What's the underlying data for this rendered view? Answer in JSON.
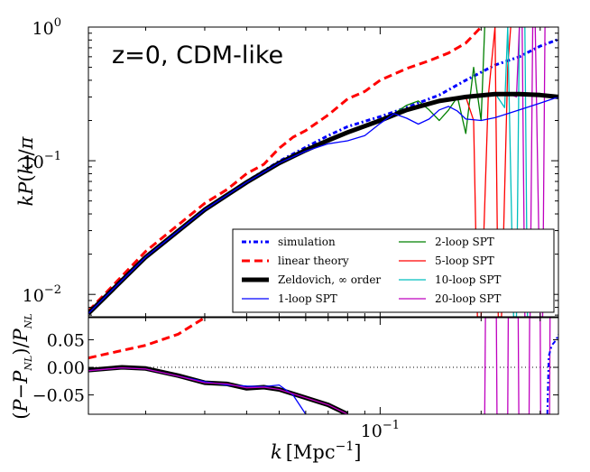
{
  "chart_data": [
    {
      "panel": "top",
      "type": "line",
      "annotation": "z=0, CDM-like",
      "ylabel": "kP(k)/π",
      "xscale": "log",
      "yscale": "log",
      "xlim": [
        0.0135,
        0.34
      ],
      "ylim": [
        0.0068,
        1.0
      ],
      "ytick_labels": [
        {
          "value": 0.01,
          "base": "10",
          "exp": "-2"
        },
        {
          "value": 0.1,
          "base": "10",
          "exp": "-1"
        },
        {
          "value": 1.0,
          "base": "10",
          "exp": "0"
        }
      ],
      "series": [
        {
          "name": "simulation",
          "color": "#0000ff",
          "style": "dashdot-dense",
          "width": 3,
          "x": [
            0.0135,
            0.02,
            0.03,
            0.04,
            0.05,
            0.06,
            0.07,
            0.08,
            0.1,
            0.12,
            0.15,
            0.18,
            0.22,
            0.26,
            0.3,
            0.34
          ],
          "y": [
            0.0073,
            0.019,
            0.043,
            0.07,
            0.099,
            0.126,
            0.154,
            0.18,
            0.214,
            0.25,
            0.31,
            0.4,
            0.52,
            0.6,
            0.72,
            0.81
          ]
        },
        {
          "name": "linear theory",
          "color": "#ff0000",
          "style": "dashed",
          "width": 3,
          "x": [
            0.0135,
            0.02,
            0.03,
            0.035,
            0.04,
            0.045,
            0.05,
            0.055,
            0.06,
            0.07,
            0.08,
            0.09,
            0.1,
            0.12,
            0.14,
            0.16,
            0.18,
            0.2
          ],
          "y": [
            0.0075,
            0.021,
            0.048,
            0.061,
            0.08,
            0.094,
            0.124,
            0.15,
            0.168,
            0.22,
            0.29,
            0.33,
            0.4,
            0.49,
            0.56,
            0.64,
            0.76,
            1.0
          ]
        },
        {
          "name": "Zeldovich, ∞ order",
          "color": "#000000",
          "style": "solid",
          "width": 5,
          "x": [
            0.0135,
            0.02,
            0.03,
            0.04,
            0.05,
            0.06,
            0.07,
            0.08,
            0.1,
            0.12,
            0.15,
            0.18,
            0.22,
            0.26,
            0.3,
            0.34
          ],
          "y": [
            0.0072,
            0.019,
            0.043,
            0.069,
            0.096,
            0.12,
            0.142,
            0.163,
            0.2,
            0.24,
            0.28,
            0.3,
            0.315,
            0.315,
            0.31,
            0.3
          ]
        },
        {
          "name": "1-loop SPT",
          "color": "#0000ff",
          "style": "solid",
          "width": 1.3,
          "x": [
            0.0135,
            0.02,
            0.03,
            0.04,
            0.05,
            0.06,
            0.07,
            0.08,
            0.09,
            0.1,
            0.11,
            0.12,
            0.13,
            0.14,
            0.15,
            0.16,
            0.17,
            0.18,
            0.2,
            0.22,
            0.26,
            0.3,
            0.34
          ],
          "y": [
            0.0072,
            0.019,
            0.043,
            0.069,
            0.096,
            0.118,
            0.134,
            0.141,
            0.154,
            0.19,
            0.225,
            0.208,
            0.188,
            0.205,
            0.24,
            0.255,
            0.235,
            0.205,
            0.2,
            0.21,
            0.24,
            0.27,
            0.3
          ]
        },
        {
          "name": "2-loop SPT",
          "color": "#008000",
          "style": "solid",
          "width": 1.3,
          "x": [
            0.0135,
            0.02,
            0.03,
            0.04,
            0.05,
            0.06,
            0.07,
            0.08,
            0.1,
            0.11,
            0.12,
            0.13,
            0.14,
            0.15,
            0.16,
            0.17,
            0.18,
            0.19,
            0.2,
            0.205
          ],
          "y": [
            0.0072,
            0.019,
            0.043,
            0.069,
            0.096,
            0.12,
            0.142,
            0.16,
            0.2,
            0.225,
            0.26,
            0.28,
            0.24,
            0.2,
            0.24,
            0.3,
            0.16,
            0.5,
            0.2,
            1.0
          ]
        },
        {
          "name": "5-loop SPT",
          "color": "#ff0000",
          "style": "solid",
          "width": 1.3,
          "x": [
            0.0135,
            0.02,
            0.03,
            0.04,
            0.05,
            0.06,
            0.07,
            0.08,
            0.1,
            0.12,
            0.14,
            0.16,
            0.18,
            0.19,
            0.195,
            0.2,
            0.21,
            0.22,
            0.225,
            0.23,
            0.24,
            0.245
          ],
          "y": [
            0.0072,
            0.019,
            0.043,
            0.069,
            0.096,
            0.12,
            0.142,
            0.163,
            0.2,
            0.24,
            0.27,
            0.28,
            0.3,
            0.2,
            0.0068,
            0.0068,
            0.3,
            1.0,
            0.0068,
            0.0068,
            0.5,
            1.0
          ]
        },
        {
          "name": "10-loop SPT",
          "color": "#00bfbf",
          "style": "solid",
          "width": 1.3,
          "x": [
            0.0135,
            0.02,
            0.03,
            0.04,
            0.05,
            0.06,
            0.07,
            0.08,
            0.1,
            0.12,
            0.15,
            0.18,
            0.2,
            0.22,
            0.235,
            0.24,
            0.25,
            0.255,
            0.26,
            0.27,
            0.275
          ],
          "y": [
            0.0072,
            0.019,
            0.043,
            0.069,
            0.096,
            0.12,
            0.142,
            0.163,
            0.2,
            0.24,
            0.28,
            0.3,
            0.31,
            0.32,
            0.25,
            1.0,
            0.0068,
            0.0068,
            1.0,
            1.0,
            0.0068
          ]
        },
        {
          "name": "20-loop SPT",
          "color": "#bf00bf",
          "style": "solid",
          "width": 1.3,
          "x": [
            0.0135,
            0.02,
            0.03,
            0.04,
            0.05,
            0.06,
            0.07,
            0.08,
            0.1,
            0.12,
            0.15,
            0.18,
            0.2,
            0.22,
            0.24,
            0.255,
            0.26,
            0.265,
            0.27,
            0.28,
            0.285,
            0.29,
            0.3,
            0.305,
            0.31,
            0.32
          ],
          "y": [
            0.0072,
            0.019,
            0.043,
            0.069,
            0.096,
            0.12,
            0.142,
            0.163,
            0.2,
            0.24,
            0.28,
            0.3,
            0.31,
            0.315,
            0.32,
            0.3,
            1.0,
            1.0,
            0.0068,
            0.0068,
            1.0,
            1.0,
            0.0068,
            0.0068,
            1.0,
            1.0
          ]
        }
      ]
    },
    {
      "panel": "bottom",
      "type": "line",
      "ylabel": "(P−P_NL)/P_NL",
      "xlabel": "k [Mpc^-1]",
      "xscale": "log",
      "xlim": [
        0.0135,
        0.34
      ],
      "ylim": [
        -0.085,
        0.09
      ],
      "yticks": [
        0.05,
        0.0,
        -0.05
      ],
      "ytick_labels": [
        "0.05",
        "0.00",
        "−0.05"
      ],
      "xtick_labels": [
        {
          "value": 0.1,
          "base": "10",
          "exp": "-1"
        }
      ],
      "reference_line": {
        "y": 0.0,
        "style": "dotted",
        "color": "#000000"
      },
      "series": [
        {
          "name": "linear theory",
          "color": "#ff0000",
          "style": "dashed",
          "width": 3,
          "x": [
            0.0135,
            0.02,
            0.025,
            0.03
          ],
          "y": [
            0.017,
            0.04,
            0.06,
            0.09
          ]
        },
        {
          "name": "Zeldovich, ∞ order",
          "color": "#000000",
          "style": "solid",
          "width": 5,
          "x": [
            0.0135,
            0.017,
            0.02,
            0.025,
            0.03,
            0.035,
            0.04,
            0.045,
            0.05,
            0.06,
            0.07,
            0.08
          ],
          "y": [
            -0.005,
            0.0,
            -0.002,
            -0.015,
            -0.028,
            -0.03,
            -0.038,
            -0.036,
            -0.04,
            -0.055,
            -0.068,
            -0.085
          ]
        },
        {
          "name": "1-loop SPT",
          "color": "#0000ff",
          "style": "solid",
          "width": 1.3,
          "x": [
            0.0135,
            0.017,
            0.02,
            0.025,
            0.03,
            0.035,
            0.04,
            0.045,
            0.05,
            0.055,
            0.06
          ],
          "y": [
            -0.006,
            -0.001,
            -0.003,
            -0.016,
            -0.026,
            -0.032,
            -0.034,
            -0.035,
            -0.032,
            -0.05,
            -0.085
          ]
        },
        {
          "name": "20-loop SPT",
          "color": "#bf00bf",
          "style": "solid",
          "width": 1.3,
          "x": [
            0.0135,
            0.017,
            0.02,
            0.025,
            0.03,
            0.035,
            0.04,
            0.045,
            0.05,
            0.06,
            0.07,
            0.08
          ],
          "y": [
            -0.006,
            -0.001,
            -0.003,
            -0.016,
            -0.028,
            -0.03,
            -0.037,
            -0.036,
            -0.04,
            -0.055,
            -0.068,
            -0.085
          ]
        },
        {
          "name": "20-loop SPT spikes",
          "color": "#bf00bf",
          "style": "solid",
          "width": 1.3,
          "x": [
            0.205,
            0.206,
            0.222,
            0.223,
            0.24,
            0.241,
            0.258,
            0.259,
            0.278,
            0.279,
            0.3,
            0.301,
            0.32,
            0.321
          ],
          "y": [
            -0.085,
            0.09,
            0.09,
            -0.085,
            -0.085,
            0.09,
            0.09,
            -0.085,
            -0.085,
            0.09,
            0.09,
            -0.085,
            -0.085,
            0.09
          ]
        },
        {
          "name": "simulation",
          "color": "#0000ff",
          "style": "dashdot-dense",
          "width": 2,
          "x": [
            0.315,
            0.318,
            0.325,
            0.335,
            0.34
          ],
          "y": [
            -0.085,
            0.02,
            0.04,
            0.05,
            0.06
          ]
        }
      ]
    }
  ],
  "legend": {
    "placement": "lower-right",
    "entries": [
      "simulation",
      "linear theory",
      "Zeldovich, ∞ order",
      "1-loop SPT",
      "2-loop SPT",
      "5-loop SPT",
      "10-loop SPT",
      "20-loop SPT"
    ]
  }
}
